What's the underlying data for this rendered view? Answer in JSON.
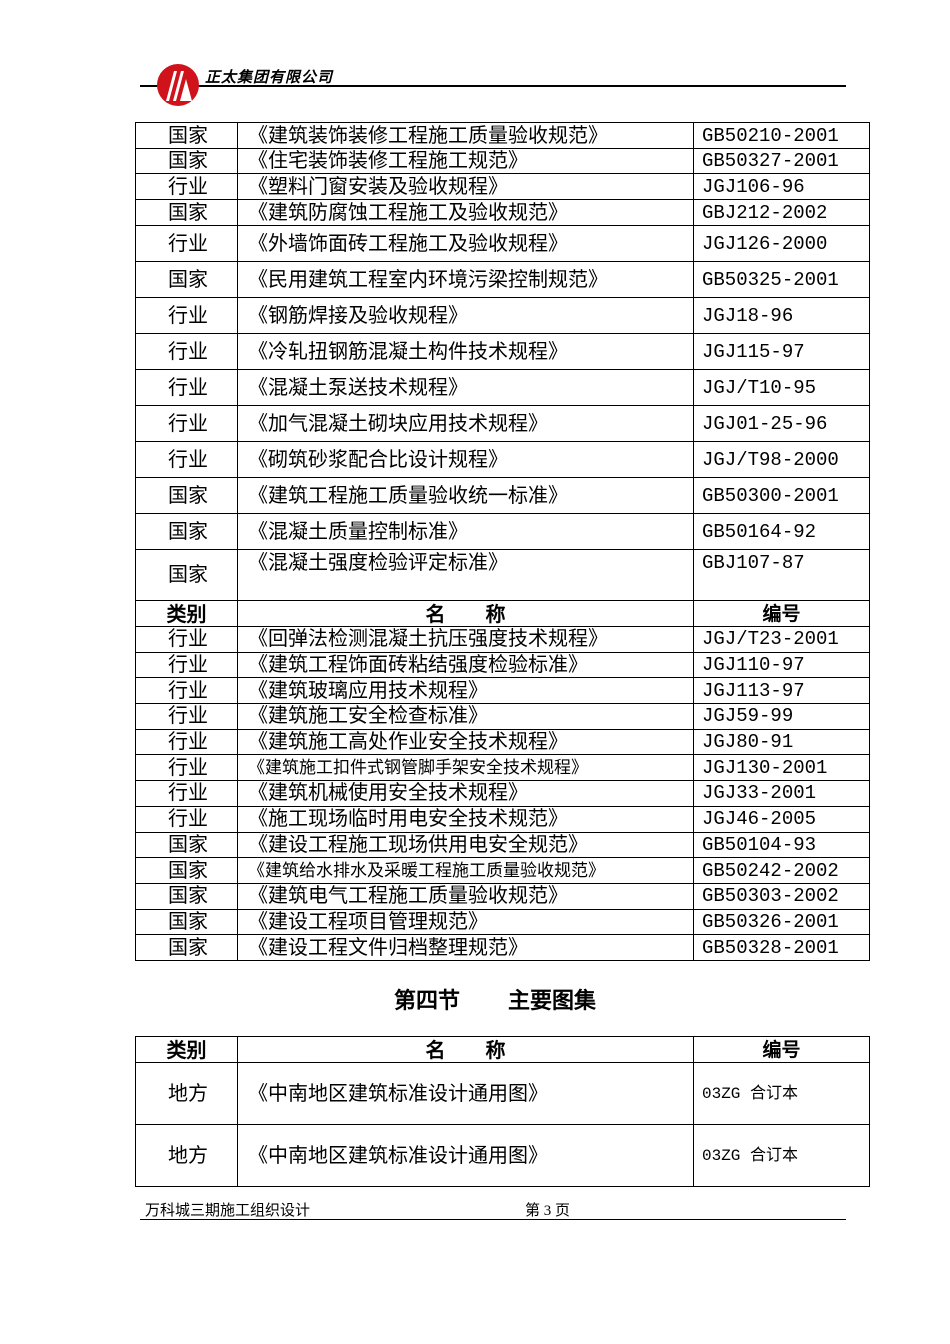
{
  "header": {
    "company": "正太集团有限公司",
    "logo_color": "#d0121b"
  },
  "table1": {
    "rows_a": [
      [
        "国家",
        "《建筑装饰装修工程施工质量验收规范》",
        "GB50210-2001"
      ],
      [
        "国家",
        "《住宅装饰装修工程施工规范》",
        "GB50327-2001"
      ],
      [
        "行业",
        "《塑料门窗安装及验收规程》",
        "JGJ106-96"
      ],
      [
        "国家",
        "《建筑防腐蚀工程施工及验收规范》",
        "GBJ212-2002"
      ],
      [
        "行业",
        "《外墙饰面砖工程施工及验收规程》",
        "JGJ126-2000"
      ],
      [
        "国家",
        "《民用建筑工程室内环境污梁控制规范》",
        "GB50325-2001"
      ],
      [
        "行业",
        "《钢筋焊接及验收规程》",
        "JGJ18-96"
      ],
      [
        "行业",
        "《冷轧扭钢筋混凝土构件技术规程》",
        "JGJ115-97"
      ],
      [
        "行业",
        "《混凝土泵送技术规程》",
        "JGJ/T10-95"
      ],
      [
        "行业",
        "《加气混凝土砌块应用技术规程》",
        "JGJ01-25-96"
      ],
      [
        "行业",
        "《砌筑砂浆配合比设计规程》",
        "JGJ/T98-2000"
      ],
      [
        "国家",
        "《建筑工程施工质量验收统一标准》",
        "GB50300-2001"
      ],
      [
        "国家",
        "《混凝土质量控制标准》",
        "GB50164-92"
      ],
      [
        "国家",
        "《混凝土强度检验评定标准》",
        "GBJ107-87"
      ]
    ],
    "header": [
      "类别",
      "名　　称",
      "编号"
    ],
    "rows_b": [
      [
        "行业",
        "《回弹法检测混凝土抗压强度技术规程》",
        "JGJ/T23-2001"
      ],
      [
        "行业",
        "《建筑工程饰面砖粘结强度检验标准》",
        "JGJ110-97"
      ],
      [
        "行业",
        "《建筑玻璃应用技术规程》",
        "JGJ113-97"
      ],
      [
        "行业",
        "《建筑施工安全检查标准》",
        "JGJ59-99"
      ],
      [
        "行业",
        "《建筑施工高处作业安全技术规程》",
        "JGJ80-91"
      ],
      [
        "行业",
        "《建筑施工扣件式钢管脚手架安全技术规程》",
        "JGJ130-2001"
      ],
      [
        "行业",
        "《建筑机械使用安全技术规程》",
        "JGJ33-2001"
      ],
      [
        "行业",
        "《施工现场临时用电安全技术规范》",
        "JGJ46-2005"
      ],
      [
        "国家",
        "《建设工程施工现场供用电安全规范》",
        "GB50104-93"
      ],
      [
        "国家",
        "《建筑给水排水及采暖工程施工质量验收规范》",
        "GB50242-2002"
      ],
      [
        "国家",
        "《建筑电气工程施工质量验收规范》",
        "GB50303-2002"
      ],
      [
        "国家",
        "《建设工程项目管理规范》",
        "GB50326-2001"
      ],
      [
        "国家",
        "《建设工程文件归档整理规范》",
        "GB50328-2001"
      ]
    ]
  },
  "section": {
    "number": "第四节",
    "title": "主要图集"
  },
  "table2": {
    "header": [
      "类别",
      "名　　称",
      "编号"
    ],
    "rows": [
      [
        "地方",
        "《中南地区建筑标准设计通用图》",
        "03ZG 合订本"
      ],
      [
        "地方",
        "《中南地区建筑标准设计通用图》",
        "03ZG 合订本"
      ]
    ]
  },
  "footer": {
    "doc_title": "万科城三期施工组织设计",
    "page": "第 3 页"
  }
}
